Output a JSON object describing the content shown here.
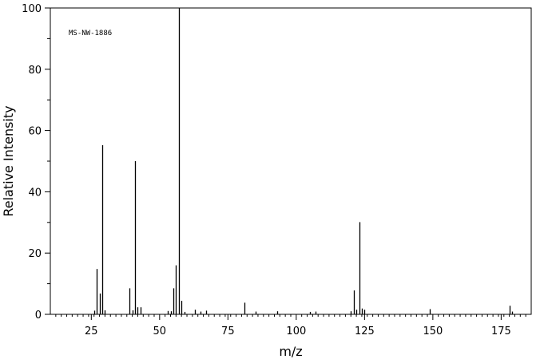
{
  "chart_data": {
    "type": "bar",
    "annotation": "MS-NW-1886",
    "xlabel": "m/z",
    "ylabel": "Relative Intensity",
    "xlim": [
      10,
      186
    ],
    "ylim": [
      0,
      100
    ],
    "x_ticks": [
      "25",
      "50",
      "75",
      "100",
      "125",
      "150",
      "175"
    ],
    "y_ticks": [
      "0",
      "20",
      "40",
      "60",
      "80",
      "100"
    ],
    "grid": false,
    "legend": false,
    "peaks": [
      {
        "mz": 26,
        "intensity": 1.2
      },
      {
        "mz": 27,
        "intensity": 14.8
      },
      {
        "mz": 28,
        "intensity": 6.8
      },
      {
        "mz": 29,
        "intensity": 55.2
      },
      {
        "mz": 30,
        "intensity": 1.3
      },
      {
        "mz": 39,
        "intensity": 8.5
      },
      {
        "mz": 40,
        "intensity": 1.3
      },
      {
        "mz": 41,
        "intensity": 50.0
      },
      {
        "mz": 42,
        "intensity": 2.3
      },
      {
        "mz": 43,
        "intensity": 2.3
      },
      {
        "mz": 53,
        "intensity": 1.1
      },
      {
        "mz": 54,
        "intensity": 1.0
      },
      {
        "mz": 55,
        "intensity": 8.5
      },
      {
        "mz": 56,
        "intensity": 16.0
      },
      {
        "mz": 57,
        "intensity": 100.0
      },
      {
        "mz": 58,
        "intensity": 4.4
      },
      {
        "mz": 59,
        "intensity": 0.8
      },
      {
        "mz": 63,
        "intensity": 1.5
      },
      {
        "mz": 65,
        "intensity": 0.9
      },
      {
        "mz": 67,
        "intensity": 1.2
      },
      {
        "mz": 81,
        "intensity": 3.8
      },
      {
        "mz": 85,
        "intensity": 0.9
      },
      {
        "mz": 93,
        "intensity": 1.0
      },
      {
        "mz": 105,
        "intensity": 0.8
      },
      {
        "mz": 107,
        "intensity": 0.9
      },
      {
        "mz": 120,
        "intensity": 1.0
      },
      {
        "mz": 121,
        "intensity": 7.8
      },
      {
        "mz": 122,
        "intensity": 1.5
      },
      {
        "mz": 123,
        "intensity": 30.1
      },
      {
        "mz": 124,
        "intensity": 1.9
      },
      {
        "mz": 125,
        "intensity": 1.5
      },
      {
        "mz": 149,
        "intensity": 1.7
      },
      {
        "mz": 178,
        "intensity": 2.8
      },
      {
        "mz": 179,
        "intensity": 0.9
      }
    ]
  }
}
